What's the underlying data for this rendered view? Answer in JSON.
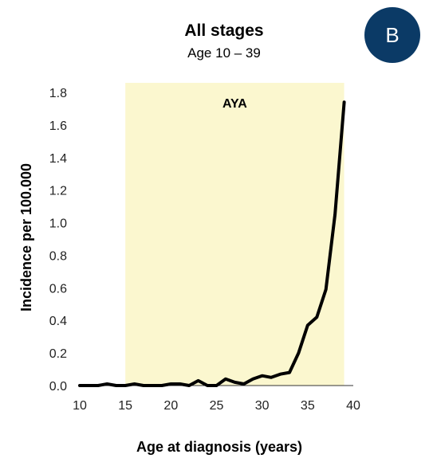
{
  "badge": {
    "label": "B",
    "color": "#0b3a66"
  },
  "chart_data": {
    "type": "line",
    "title": "All stages",
    "subtitle": "Age 10 – 39",
    "xlabel": "Age at diagnosis (years)",
    "ylabel": "Incidence per 100.000",
    "xlim": [
      10,
      40
    ],
    "ylim": [
      0,
      1.8
    ],
    "x_ticks": [
      "10",
      "15",
      "20",
      "25",
      "30",
      "35",
      "40"
    ],
    "y_ticks": [
      "0.0",
      "0.2",
      "0.4",
      "0.6",
      "0.8",
      "1.0",
      "1.2",
      "1.4",
      "1.6",
      "1.8"
    ],
    "grid": false,
    "line_color": "#000000",
    "highlight": {
      "label": "AYA",
      "x_start": 15,
      "x_end": 39,
      "color": "#fbf7cf"
    },
    "series": [
      {
        "x": [
          10,
          11,
          12,
          13,
          14,
          15,
          16,
          17,
          18,
          19,
          20,
          21,
          22,
          23,
          24,
          25,
          26,
          27,
          28,
          29,
          30,
          31,
          32,
          33,
          34,
          35,
          36,
          37,
          38,
          39
        ],
        "values": [
          0.0,
          0.0,
          0.0,
          0.01,
          0.0,
          0.0,
          0.01,
          0.0,
          0.0,
          0.0,
          0.01,
          0.01,
          0.0,
          0.03,
          0.0,
          0.0,
          0.04,
          0.02,
          0.01,
          0.04,
          0.06,
          0.05,
          0.07,
          0.08,
          0.2,
          0.37,
          0.42,
          0.59,
          1.05,
          1.74
        ]
      }
    ]
  }
}
